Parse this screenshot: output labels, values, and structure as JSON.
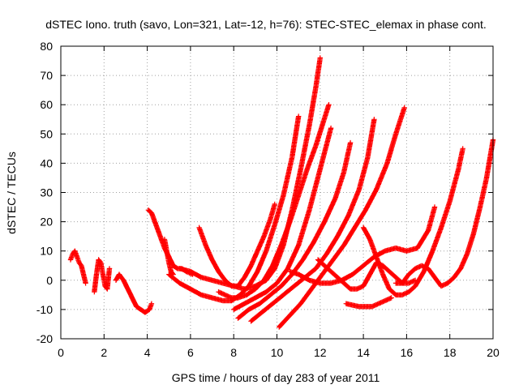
{
  "chart_data": {
    "type": "scatter",
    "title": "dSTEC Iono. truth (savo, Lon=321, Lat=-12, h=76): STEC-STEC_elemax in phase cont.",
    "xlabel": "GPS time / hours of day 283 of year 2011",
    "ylabel": "dSTEC  / TECUs",
    "xlim": [
      0,
      20
    ],
    "ylim": [
      -20,
      80
    ],
    "xticks": [
      0,
      2,
      4,
      6,
      8,
      10,
      12,
      14,
      16,
      18,
      20
    ],
    "yticks": [
      -20,
      -10,
      0,
      10,
      20,
      30,
      40,
      50,
      60,
      70,
      80
    ],
    "xtick_labels": [
      "0",
      "2",
      "4",
      "6",
      "8",
      "10",
      "12",
      "14",
      "16",
      "18",
      "20"
    ],
    "ytick_labels": [
      "-20",
      "-10",
      "0",
      "10",
      "20",
      "30",
      "40",
      "50",
      "60",
      "70",
      "80"
    ],
    "grid": true,
    "marker": "+",
    "color": "#ff0000",
    "series": [
      {
        "x": [
          0.45,
          0.55,
          0.65,
          0.75,
          0.85,
          0.95,
          1.05,
          1.15
        ],
        "y": [
          7,
          9,
          10,
          8,
          6,
          5,
          2,
          -1
        ]
      },
      {
        "x": [
          1.55,
          1.65,
          1.75,
          1.85,
          1.95,
          2.05,
          2.15,
          2.25
        ],
        "y": [
          -4,
          2,
          7,
          6,
          2,
          -2,
          -3,
          4
        ]
      },
      {
        "x": [
          2.55,
          2.7,
          2.9,
          3.1,
          3.3,
          3.5,
          3.7,
          3.9,
          4.1,
          4.2
        ],
        "y": [
          0,
          2,
          0,
          -3,
          -6,
          -9,
          -10,
          -11,
          -10,
          -8
        ]
      },
      {
        "x": [
          4.05,
          4.2,
          4.4,
          4.6,
          4.8,
          5.0,
          5.2,
          5.4,
          5.6,
          5.8,
          6.1
        ],
        "y": [
          24,
          23,
          19,
          15,
          11,
          8,
          5,
          4,
          4,
          3,
          2
        ]
      },
      {
        "x": [
          4.8,
          4.9,
          5.0,
          5.1,
          5.2
        ],
        "y": [
          14,
          10,
          6,
          3,
          2
        ]
      },
      {
        "x": [
          5.0,
          5.5,
          6.0,
          6.5,
          7.0,
          7.5,
          7.9,
          8.3,
          8.7,
          9.1,
          9.5,
          9.9,
          10.3,
          10.7,
          11.0
        ],
        "y": [
          2,
          -1,
          -3,
          -5,
          -6,
          -7,
          -7,
          -5,
          -2,
          3,
          10,
          19,
          29,
          42,
          56
        ]
      },
      {
        "x": [
          5.5,
          6.0,
          6.5,
          7.0,
          7.5,
          8.0,
          8.5,
          9.0,
          9.5,
          9.9,
          10.3,
          10.7,
          11.1,
          11.5,
          11.8,
          12.0
        ],
        "y": [
          4,
          3,
          1,
          0,
          -1,
          -2,
          -3,
          -2,
          0,
          4,
          12,
          24,
          38,
          53,
          66,
          76
        ]
      },
      {
        "x": [
          6.4,
          6.7,
          7.0,
          7.3,
          7.6,
          7.9,
          8.2,
          8.5,
          8.8,
          9.1,
          9.4,
          9.7,
          9.9
        ],
        "y": [
          18,
          12,
          7,
          3,
          0,
          -2,
          -2,
          1,
          5,
          10,
          15,
          21,
          26
        ]
      },
      {
        "x": [
          7.3,
          7.6,
          7.9,
          8.2,
          8.6,
          9.0,
          9.4,
          9.8,
          10.2,
          10.6,
          11.0,
          11.4,
          11.8,
          12.1,
          12.4
        ],
        "y": [
          -4,
          -5,
          -6,
          -6,
          -5,
          -3,
          0,
          5,
          12,
          20,
          29,
          38,
          46,
          53,
          60
        ]
      },
      {
        "x": [
          8.0,
          8.5,
          9.0,
          9.5,
          10.0,
          10.5,
          11.0,
          11.5,
          12.0,
          12.5
        ],
        "y": [
          -10,
          -8,
          -6,
          -4,
          -1,
          4,
          12,
          24,
          38,
          52
        ]
      },
      {
        "x": [
          8.2,
          8.7,
          9.2,
          9.7,
          10.2,
          10.7,
          11.2,
          11.7,
          12.2,
          12.7,
          13.1,
          13.4
        ],
        "y": [
          -13,
          -10,
          -8,
          -5,
          -2,
          2,
          7,
          13,
          20,
          28,
          37,
          47
        ]
      },
      {
        "x": [
          8.8,
          9.3,
          9.8,
          10.3,
          10.8,
          11.3,
          11.8,
          12.3,
          12.8,
          13.3,
          13.8,
          14.2,
          14.5
        ],
        "y": [
          -14,
          -11,
          -8,
          -5,
          -2,
          1,
          4,
          9,
          15,
          22,
          31,
          42,
          55
        ]
      },
      {
        "x": [
          10.1,
          10.6,
          11.1,
          11.6,
          12.1,
          12.6,
          13.1,
          13.6,
          14.1,
          14.6,
          15.1,
          15.5,
          15.9
        ],
        "y": [
          -16,
          -12,
          -8,
          -3,
          2,
          7,
          12,
          18,
          24,
          31,
          40,
          50,
          59
        ]
      },
      {
        "x": [
          10.6,
          11.0,
          11.5,
          12.0,
          12.5,
          13.0,
          13.5,
          14.0,
          14.5,
          15.0,
          15.5,
          16.0,
          16.5,
          17.0,
          17.3
        ],
        "y": [
          3,
          2,
          0,
          -1,
          -1,
          0,
          2,
          5,
          8,
          10,
          11,
          10,
          11,
          17,
          25
        ]
      },
      {
        "x": [
          11.9,
          12.2,
          12.5,
          12.8,
          13.1,
          13.4,
          13.7,
          14.0,
          14.3,
          14.6,
          14.9,
          15.2,
          15.5,
          15.8,
          16.1,
          16.4
        ],
        "y": [
          7,
          5,
          3,
          1,
          -1,
          -3,
          -3,
          -2,
          2,
          6,
          5,
          3,
          1,
          -1,
          -1,
          0
        ]
      },
      {
        "x": [
          13.2,
          13.5,
          13.8,
          14.1,
          14.4,
          14.7,
          15.0,
          15.3
        ],
        "y": [
          -8,
          -8.5,
          -9,
          -9,
          -9,
          -8,
          -7,
          -6
        ]
      },
      {
        "x": [
          14.0,
          14.3,
          14.6,
          14.9,
          15.2,
          15.5,
          15.8,
          16.1,
          16.4,
          16.8,
          17.2,
          17.6,
          18.0,
          18.4,
          18.6
        ],
        "y": [
          18,
          14,
          8,
          2,
          -3,
          -5,
          -5,
          -4,
          -2,
          3,
          10,
          18,
          27,
          38,
          45
        ]
      },
      {
        "x": [
          15.5,
          15.8,
          16.1,
          16.4,
          16.7,
          17.0,
          17.3,
          17.6,
          17.9,
          18.2,
          18.5,
          18.8,
          19.1,
          19.4,
          19.7,
          20.0
        ],
        "y": [
          -1,
          -1,
          2,
          4,
          5,
          4,
          1,
          -2,
          -1,
          1,
          4,
          9,
          16,
          25,
          35,
          48
        ]
      }
    ]
  }
}
